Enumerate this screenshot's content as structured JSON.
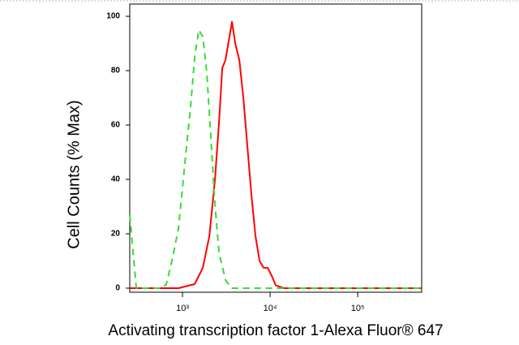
{
  "chart_data": {
    "type": "line",
    "x_label": "Activating transcription factor 1-Alexa Fluor® 647",
    "y_label": "Cell Counts (% Max)",
    "log_x": true,
    "xlim": [
      250,
      537000
    ],
    "ylim": [
      -1.5,
      104.5
    ],
    "xticks": [
      {
        "value": 1000,
        "label": "10³"
      },
      {
        "value": 10000,
        "label": "10⁴"
      },
      {
        "value": 100000,
        "label": "10⁵"
      }
    ],
    "yticks": [
      0,
      20,
      40,
      60,
      80,
      100
    ],
    "series": [
      {
        "color": "#ff0000",
        "linestyle": "solid",
        "x": [
          250,
          588,
          899,
          1377,
          1704,
          2022,
          2346,
          2610,
          2844,
          3097,
          3374,
          3673,
          4001,
          4450,
          4950,
          5506,
          6125,
          6813,
          7579,
          8431,
          9378,
          10432,
          11605,
          14362,
          537000
        ],
        "values": [
          0,
          0,
          0,
          1.5,
          7.5,
          19,
          40,
          61,
          81,
          84,
          91,
          98,
          90,
          84,
          70,
          52,
          34,
          19,
          10,
          7.5,
          7.5,
          4.5,
          1,
          0,
          0
        ]
      },
      {
        "color": "#33dd33",
        "linestyle": "dashed",
        "x": [
          250,
          297,
          588,
          653,
          758,
          899,
          1066,
          1238,
          1377,
          1532,
          1704,
          1896,
          2109,
          2346,
          2610,
          3097,
          3594,
          537000
        ],
        "values": [
          27,
          0,
          0,
          1.5,
          10,
          22,
          46,
          67,
          85,
          95,
          92.5,
          79,
          55,
          31,
          13,
          3,
          0,
          0
        ]
      }
    ]
  }
}
